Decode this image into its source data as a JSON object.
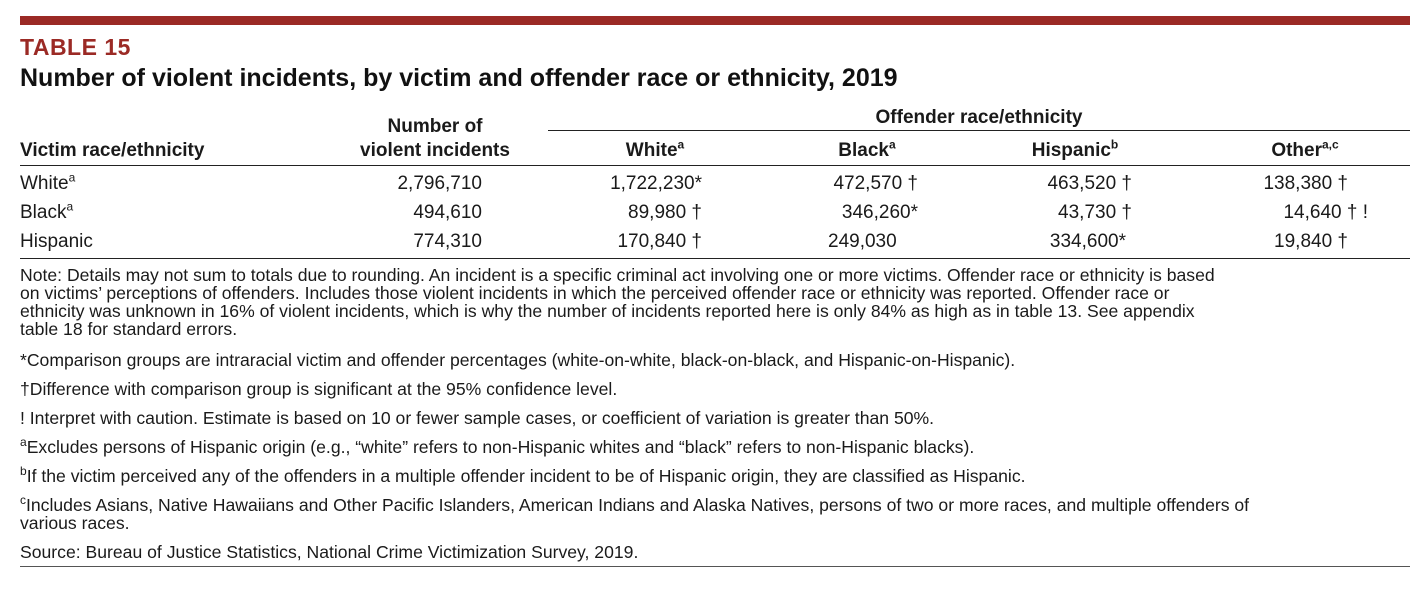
{
  "table_label": "TABLE 15",
  "title": "Number of violent incidents, by victim and offender race or ethnicity, 2019",
  "header": {
    "victim_col": "Victim race/ethnicity",
    "incidents_col_line1": "Number of",
    "incidents_col_line2": "violent incidents",
    "offender_group": "Offender race/ethnicity",
    "offender_cols": [
      {
        "label": "White",
        "sup": "a"
      },
      {
        "label": "Black",
        "sup": "a"
      },
      {
        "label": "Hispanic",
        "sup": "b"
      },
      {
        "label": "Other",
        "sup": "a,c"
      }
    ]
  },
  "rows": [
    {
      "victim": "White",
      "sup": "a",
      "incidents": "2,796,710",
      "cells": [
        "1,722,230*",
        "472,570 †",
        "463,520 †",
        "138,380 †"
      ]
    },
    {
      "victim": "Black",
      "sup": "a",
      "incidents": "494,610",
      "cells": [
        "89,980 †",
        "346,260*",
        "43,730 †",
        "14,640 † !"
      ]
    },
    {
      "victim": "Hispanic",
      "sup": "",
      "incidents": "774,310",
      "cells": [
        "170,840 †",
        "249,030",
        "334,600*",
        "19,840 †"
      ]
    }
  ],
  "notes": {
    "note_lines": [
      "Note: Details may not sum to totals due to rounding. An incident is a specific criminal act involving one or more victims. Offender race or ethnicity is based",
      "on victims’ perceptions of offenders. Includes those violent incidents in which the perceived offender race or ethnicity was reported. Offender race or",
      "ethnicity was unknown in 16% of violent incidents, which is why the number of incidents reported here is only 84% as high as in table 13. See appendix",
      "table 18 for standard errors."
    ],
    "asterisk": "*Comparison groups are intraracial victim and offender percentages (white-on-white, black-on-black, and Hispanic-on-Hispanic).",
    "dagger": "†Difference with comparison group is significant at the 95% confidence level.",
    "caution": "! Interpret with caution. Estimate is based on 10 or fewer sample cases, or coefficient of variation is greater than 50%.",
    "a_mark": "a",
    "a_text": "Excludes persons of Hispanic origin (e.g., “white” refers to non-Hispanic whites and “black” refers to non-Hispanic blacks).",
    "b_mark": "b",
    "b_text": "If the victim perceived any of the offenders in a multiple offender incident to be of Hispanic origin, they are classified as Hispanic.",
    "c_mark": "c",
    "c_text_line1": "Includes Asians, Native Hawaiians and Other Pacific Islanders, American Indians and Alaska Natives, persons of two or more races, and multiple offenders of",
    "c_text_line2": "various races.",
    "source": "Source: Bureau of Justice Statistics, National Crime Victimization Survey, 2019."
  },
  "colors": {
    "accent": "#9b2a25"
  }
}
